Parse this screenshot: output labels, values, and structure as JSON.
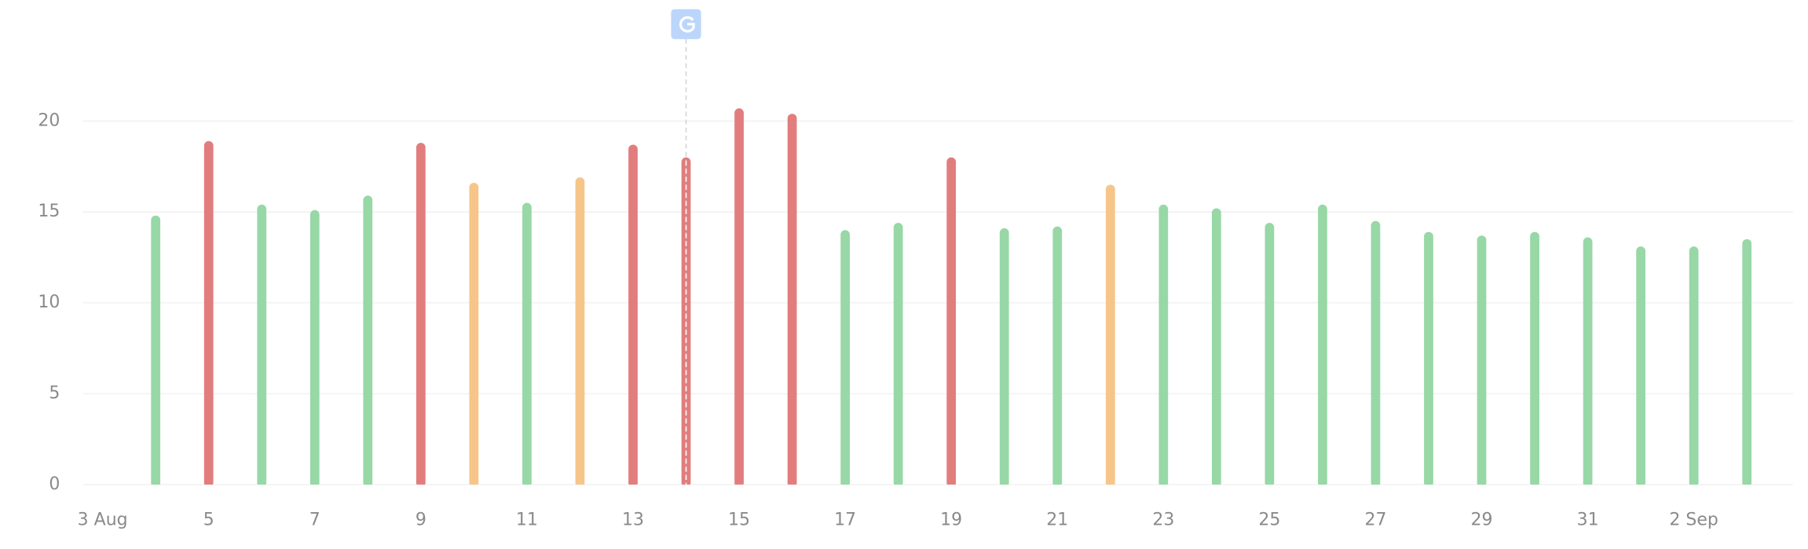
{
  "chart_data": {
    "type": "bar",
    "categories": [
      "3 Aug",
      null,
      "5",
      null,
      "7",
      null,
      "9",
      null,
      "11",
      null,
      "13",
      null,
      "15",
      null,
      "17",
      null,
      "19",
      null,
      "21",
      null,
      "23",
      null,
      "25",
      null,
      "27",
      null,
      "29",
      null,
      "31",
      null,
      "2 Sep",
      null
    ],
    "series": [
      {
        "values": [
          null,
          14.8,
          18.9,
          15.4,
          15.1,
          15.9,
          18.8,
          16.6,
          15.5,
          16.9,
          18.7,
          18.0,
          20.7,
          20.4,
          14.0,
          14.4,
          18.0,
          14.1,
          14.2,
          16.5,
          15.4,
          15.2,
          14.4,
          15.4,
          14.5,
          13.9,
          13.7,
          13.9,
          13.6,
          13.1,
          13.1,
          13.5
        ],
        "colors": [
          null,
          "#97d8a6",
          "#e27d7d",
          "#97d8a6",
          "#97d8a6",
          "#97d8a6",
          "#e27d7d",
          "#f6c58a",
          "#97d8a6",
          "#f6c58a",
          "#e27d7d",
          "#e27d7d",
          "#e27d7d",
          "#e27d7d",
          "#97d8a6",
          "#97d8a6",
          "#e27d7d",
          "#97d8a6",
          "#97d8a6",
          "#f6c58a",
          "#97d8a6",
          "#97d8a6",
          "#97d8a6",
          "#97d8a6",
          "#97d8a6",
          "#97d8a6",
          "#97d8a6",
          "#97d8a6",
          "#97d8a6",
          "#97d8a6",
          "#97d8a6",
          "#97d8a6"
        ]
      }
    ],
    "ylim": [
      0,
      24
    ],
    "yticks": [
      0,
      5,
      10,
      15,
      20
    ],
    "grid": true
  }
}
